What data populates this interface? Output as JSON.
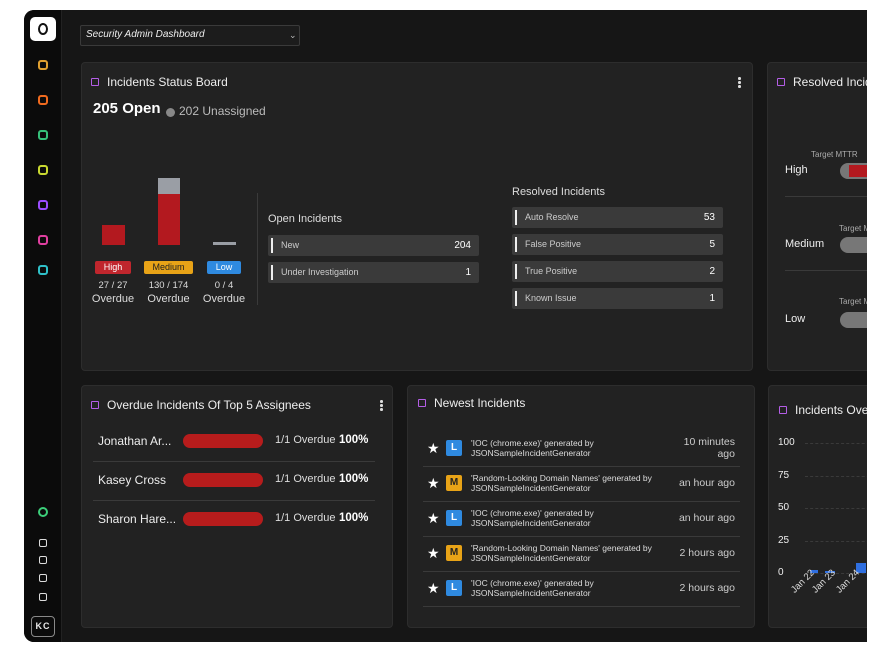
{
  "sidebar": {
    "user": "KC"
  },
  "header": {
    "dashboard": "Security Admin Dashboard"
  },
  "status_board": {
    "title": "Incidents Status Board",
    "open": "205 Open",
    "unassigned": "202 Unassigned",
    "severities": [
      {
        "label": "High",
        "count": "27 / 27",
        "status": "Overdue"
      },
      {
        "label": "Medium",
        "count": "130 / 174",
        "status": "Overdue"
      },
      {
        "label": "Low",
        "count": "0 / 4",
        "status": "Overdue"
      }
    ],
    "open_incidents": {
      "title": "Open Incidents",
      "rows": [
        {
          "name": "New",
          "value": 204
        },
        {
          "name": "Under Investigation",
          "value": 1
        }
      ]
    },
    "resolved_incidents": {
      "title": "Resolved Incidents",
      "rows": [
        {
          "name": "Auto Resolve",
          "value": 53
        },
        {
          "name": "False Positive",
          "value": 5
        },
        {
          "name": "True Positive",
          "value": 2
        },
        {
          "name": "Known Issue",
          "value": 1
        }
      ]
    }
  },
  "resolved_panel": {
    "title": "Resolved Incidents",
    "rows": [
      {
        "label": "High",
        "target": "Target MTTR"
      },
      {
        "label": "Medium",
        "target": "Target MTTR"
      },
      {
        "label": "Low",
        "target": "Target MTTR"
      }
    ]
  },
  "assignees": {
    "title": "Overdue Incidents Of Top 5 Assignees",
    "rows": [
      {
        "name": "Jonathan Ar...",
        "overdue": "1/1 Overdue",
        "percent": "100%"
      },
      {
        "name": "Kasey Cross",
        "overdue": "1/1 Overdue",
        "percent": "100%"
      },
      {
        "name": "Sharon Hare...",
        "overdue": "1/1 Overdue",
        "percent": "100%"
      }
    ]
  },
  "newest": {
    "title": "Newest Incidents",
    "rows": [
      {
        "badge": "L",
        "line1": "'IOC (chrome.exe)' generated by",
        "line2": "JSONSampleIncidentGenerator",
        "time": "10 minutes ago"
      },
      {
        "badge": "M",
        "line1": "'Random-Looking Domain Names' generated by",
        "line2": "JSONSampleIncidentGenerator",
        "time": "an hour ago"
      },
      {
        "badge": "L",
        "line1": "'IOC (chrome.exe)' generated by",
        "line2": "JSONSampleIncidentGenerator",
        "time": "an hour ago"
      },
      {
        "badge": "M",
        "line1": "'Random-Looking Domain Names' generated by",
        "line2": "JSONSampleIncidentGenerator",
        "time": "2 hours ago"
      },
      {
        "badge": "L",
        "line1": "'IOC (chrome.exe)' generated by",
        "line2": "JSONSampleIncidentGenerator",
        "time": "2 hours ago"
      }
    ]
  },
  "trend": {
    "title": "Incidents Over Time",
    "yticks": [
      100,
      75,
      50,
      25,
      0
    ],
    "xlabels": [
      "Jan 22",
      "Jan 23",
      "Jan 24"
    ]
  }
}
